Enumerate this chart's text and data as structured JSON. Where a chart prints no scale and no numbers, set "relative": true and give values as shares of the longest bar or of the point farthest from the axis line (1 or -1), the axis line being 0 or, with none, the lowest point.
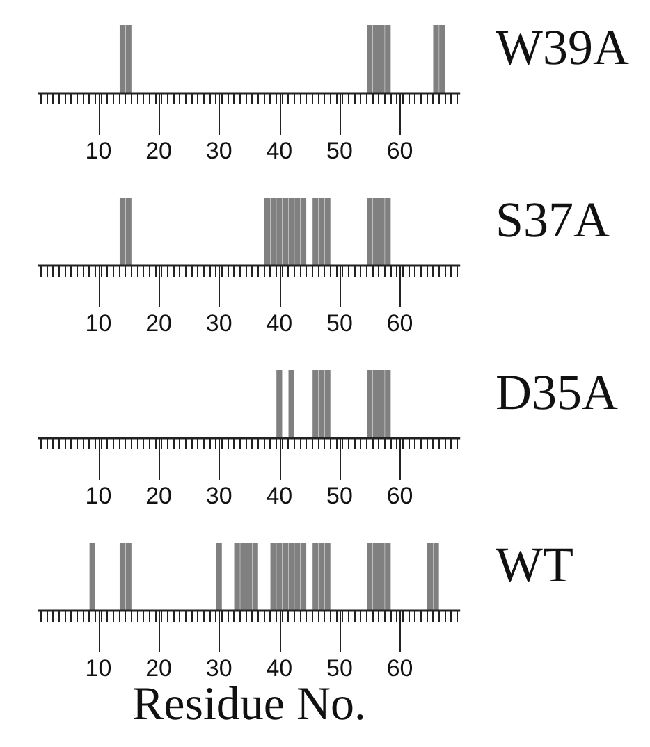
{
  "chart_data": [
    {
      "type": "bar",
      "relative": true,
      "xlim": [
        0,
        70
      ],
      "x": [
        14,
        15,
        55,
        56,
        57,
        58,
        66,
        67
      ],
      "series": [
        {
          "name": "W39A",
          "color": "#808080",
          "values": [
            1,
            1,
            1,
            1,
            1,
            1,
            1,
            1
          ]
        }
      ],
      "xticks": [
        {
          "value": 1,
          "label": null
        },
        {
          "value": 2,
          "label": null
        },
        {
          "value": 3,
          "label": null
        },
        {
          "value": 4,
          "label": null
        },
        {
          "value": 5,
          "label": null
        },
        {
          "value": 6,
          "label": null
        },
        {
          "value": 7,
          "label": null
        },
        {
          "value": 8,
          "label": null
        },
        {
          "value": 9,
          "label": null
        },
        10,
        {
          "value": 11,
          "label": null
        },
        {
          "value": 12,
          "label": null
        },
        {
          "value": 13,
          "label": null
        },
        {
          "value": 14,
          "label": null
        },
        {
          "value": 15,
          "label": null
        },
        {
          "value": 16,
          "label": null
        },
        {
          "value": 17,
          "label": null
        },
        {
          "value": 18,
          "label": null
        },
        {
          "value": 19,
          "label": null
        },
        20,
        {
          "value": 21,
          "label": null
        },
        {
          "value": 22,
          "label": null
        },
        {
          "value": 23,
          "label": null
        },
        {
          "value": 24,
          "label": null
        },
        {
          "value": 25,
          "label": null
        },
        {
          "value": 26,
          "label": null
        },
        {
          "value": 27,
          "label": null
        },
        {
          "value": 28,
          "label": null
        },
        {
          "value": 29,
          "label": null
        },
        30,
        {
          "value": 31,
          "label": null
        },
        {
          "value": 32,
          "label": null
        },
        {
          "value": 33,
          "label": null
        },
        {
          "value": 34,
          "label": null
        },
        {
          "value": 35,
          "label": null
        },
        {
          "value": 36,
          "label": null
        },
        {
          "value": 37,
          "label": null
        },
        {
          "value": 38,
          "label": null
        },
        {
          "value": 39,
          "label": null
        },
        40,
        {
          "value": 41,
          "label": null
        },
        {
          "value": 42,
          "label": null
        },
        {
          "value": 43,
          "label": null
        },
        {
          "value": 44,
          "label": null
        },
        {
          "value": 45,
          "label": null
        },
        {
          "value": 46,
          "label": null
        },
        {
          "value": 47,
          "label": null
        },
        {
          "value": 48,
          "label": null
        },
        {
          "value": 49,
          "label": null
        },
        50,
        {
          "value": 51,
          "label": null
        },
        {
          "value": 52,
          "label": null
        },
        {
          "value": 53,
          "label": null
        },
        {
          "value": 54,
          "label": null
        },
        {
          "value": 55,
          "label": null
        },
        {
          "value": 56,
          "label": null
        },
        {
          "value": 57,
          "label": null
        },
        {
          "value": 58,
          "label": null
        },
        {
          "value": 59,
          "label": null
        },
        60,
        {
          "value": 61,
          "label": null
        },
        {
          "value": 62,
          "label": null
        },
        {
          "value": 63,
          "label": null
        },
        {
          "value": 64,
          "label": null
        },
        {
          "value": 65,
          "label": null
        },
        {
          "value": 66,
          "label": null
        },
        {
          "value": 67,
          "label": null
        },
        {
          "value": 68,
          "label": null
        },
        {
          "value": 69,
          "label": null
        }
      ]
    },
    {
      "type": "bar",
      "relative": true,
      "xlim": [
        0,
        70
      ],
      "x": [
        14,
        15,
        38,
        39,
        40,
        41,
        42,
        43,
        44,
        46,
        47,
        48,
        55,
        56,
        57,
        58
      ],
      "series": [
        {
          "name": "S37A",
          "color": "#808080",
          "values": [
            1,
            1,
            1,
            1,
            1,
            1,
            1,
            1,
            1,
            1,
            1,
            1,
            1,
            1,
            1,
            1
          ]
        }
      ],
      "xticks": [
        {
          "value": 1,
          "label": null
        },
        {
          "value": 2,
          "label": null
        },
        {
          "value": 3,
          "label": null
        },
        {
          "value": 4,
          "label": null
        },
        {
          "value": 5,
          "label": null
        },
        {
          "value": 6,
          "label": null
        },
        {
          "value": 7,
          "label": null
        },
        {
          "value": 8,
          "label": null
        },
        {
          "value": 9,
          "label": null
        },
        10,
        {
          "value": 11,
          "label": null
        },
        {
          "value": 12,
          "label": null
        },
        {
          "value": 13,
          "label": null
        },
        {
          "value": 14,
          "label": null
        },
        {
          "value": 15,
          "label": null
        },
        {
          "value": 16,
          "label": null
        },
        {
          "value": 17,
          "label": null
        },
        {
          "value": 18,
          "label": null
        },
        {
          "value": 19,
          "label": null
        },
        20,
        {
          "value": 21,
          "label": null
        },
        {
          "value": 22,
          "label": null
        },
        {
          "value": 23,
          "label": null
        },
        {
          "value": 24,
          "label": null
        },
        {
          "value": 25,
          "label": null
        },
        {
          "value": 26,
          "label": null
        },
        {
          "value": 27,
          "label": null
        },
        {
          "value": 28,
          "label": null
        },
        {
          "value": 29,
          "label": null
        },
        30,
        {
          "value": 31,
          "label": null
        },
        {
          "value": 32,
          "label": null
        },
        {
          "value": 33,
          "label": null
        },
        {
          "value": 34,
          "label": null
        },
        {
          "value": 35,
          "label": null
        },
        {
          "value": 36,
          "label": null
        },
        {
          "value": 37,
          "label": null
        },
        {
          "value": 38,
          "label": null
        },
        {
          "value": 39,
          "label": null
        },
        40,
        {
          "value": 41,
          "label": null
        },
        {
          "value": 42,
          "label": null
        },
        {
          "value": 43,
          "label": null
        },
        {
          "value": 44,
          "label": null
        },
        {
          "value": 45,
          "label": null
        },
        {
          "value": 46,
          "label": null
        },
        {
          "value": 47,
          "label": null
        },
        {
          "value": 48,
          "label": null
        },
        {
          "value": 49,
          "label": null
        },
        50,
        {
          "value": 51,
          "label": null
        },
        {
          "value": 52,
          "label": null
        },
        {
          "value": 53,
          "label": null
        },
        {
          "value": 54,
          "label": null
        },
        {
          "value": 55,
          "label": null
        },
        {
          "value": 56,
          "label": null
        },
        {
          "value": 57,
          "label": null
        },
        {
          "value": 58,
          "label": null
        },
        {
          "value": 59,
          "label": null
        },
        60,
        {
          "value": 61,
          "label": null
        },
        {
          "value": 62,
          "label": null
        },
        {
          "value": 63,
          "label": null
        },
        {
          "value": 64,
          "label": null
        },
        {
          "value": 65,
          "label": null
        },
        {
          "value": 66,
          "label": null
        },
        {
          "value": 67,
          "label": null
        },
        {
          "value": 68,
          "label": null
        },
        {
          "value": 69,
          "label": null
        }
      ]
    },
    {
      "type": "bar",
      "relative": true,
      "xlim": [
        0,
        70
      ],
      "x": [
        40,
        42,
        46,
        47,
        48,
        55,
        56,
        57,
        58
      ],
      "series": [
        {
          "name": "D35A",
          "color": "#808080",
          "values": [
            1,
            1,
            1,
            1,
            1,
            1,
            1,
            1,
            1
          ]
        }
      ],
      "xticks": [
        {
          "value": 1,
          "label": null
        },
        {
          "value": 2,
          "label": null
        },
        {
          "value": 3,
          "label": null
        },
        {
          "value": 4,
          "label": null
        },
        {
          "value": 5,
          "label": null
        },
        {
          "value": 6,
          "label": null
        },
        {
          "value": 7,
          "label": null
        },
        {
          "value": 8,
          "label": null
        },
        {
          "value": 9,
          "label": null
        },
        10,
        {
          "value": 11,
          "label": null
        },
        {
          "value": 12,
          "label": null
        },
        {
          "value": 13,
          "label": null
        },
        {
          "value": 14,
          "label": null
        },
        {
          "value": 15,
          "label": null
        },
        {
          "value": 16,
          "label": null
        },
        {
          "value": 17,
          "label": null
        },
        {
          "value": 18,
          "label": null
        },
        {
          "value": 19,
          "label": null
        },
        20,
        {
          "value": 21,
          "label": null
        },
        {
          "value": 22,
          "label": null
        },
        {
          "value": 23,
          "label": null
        },
        {
          "value": 24,
          "label": null
        },
        {
          "value": 25,
          "label": null
        },
        {
          "value": 26,
          "label": null
        },
        {
          "value": 27,
          "label": null
        },
        {
          "value": 28,
          "label": null
        },
        {
          "value": 29,
          "label": null
        },
        30,
        {
          "value": 31,
          "label": null
        },
        {
          "value": 32,
          "label": null
        },
        {
          "value": 33,
          "label": null
        },
        {
          "value": 34,
          "label": null
        },
        {
          "value": 35,
          "label": null
        },
        {
          "value": 36,
          "label": null
        },
        {
          "value": 37,
          "label": null
        },
        {
          "value": 38,
          "label": null
        },
        {
          "value": 39,
          "label": null
        },
        40,
        {
          "value": 41,
          "label": null
        },
        {
          "value": 42,
          "label": null
        },
        {
          "value": 43,
          "label": null
        },
        {
          "value": 44,
          "label": null
        },
        {
          "value": 45,
          "label": null
        },
        {
          "value": 46,
          "label": null
        },
        {
          "value": 47,
          "label": null
        },
        {
          "value": 48,
          "label": null
        },
        {
          "value": 49,
          "label": null
        },
        50,
        {
          "value": 51,
          "label": null
        },
        {
          "value": 52,
          "label": null
        },
        {
          "value": 53,
          "label": null
        },
        {
          "value": 54,
          "label": null
        },
        {
          "value": 55,
          "label": null
        },
        {
          "value": 56,
          "label": null
        },
        {
          "value": 57,
          "label": null
        },
        {
          "value": 58,
          "label": null
        },
        {
          "value": 59,
          "label": null
        },
        60,
        {
          "value": 61,
          "label": null
        },
        {
          "value": 62,
          "label": null
        },
        {
          "value": 63,
          "label": null
        },
        {
          "value": 64,
          "label": null
        },
        {
          "value": 65,
          "label": null
        },
        {
          "value": 66,
          "label": null
        },
        {
          "value": 67,
          "label": null
        },
        {
          "value": 68,
          "label": null
        },
        {
          "value": 69,
          "label": null
        }
      ]
    },
    {
      "type": "bar",
      "xlabel": "Residue No.",
      "relative": true,
      "xlim": [
        0,
        70
      ],
      "x": [
        9,
        14,
        15,
        30,
        33,
        34,
        35,
        36,
        39,
        40,
        41,
        42,
        43,
        44,
        46,
        47,
        48,
        55,
        56,
        57,
        58,
        65,
        66
      ],
      "series": [
        {
          "name": "WT",
          "color": "#808080",
          "values": [
            1,
            1,
            1,
            1,
            1,
            1,
            1,
            1,
            1,
            1,
            1,
            1,
            1,
            1,
            1,
            1,
            1,
            1,
            1,
            1,
            1,
            1,
            1
          ]
        }
      ],
      "xticks": [
        {
          "value": 1,
          "label": null
        },
        {
          "value": 2,
          "label": null
        },
        {
          "value": 3,
          "label": null
        },
        {
          "value": 4,
          "label": null
        },
        {
          "value": 5,
          "label": null
        },
        {
          "value": 6,
          "label": null
        },
        {
          "value": 7,
          "label": null
        },
        {
          "value": 8,
          "label": null
        },
        {
          "value": 9,
          "label": null
        },
        10,
        {
          "value": 11,
          "label": null
        },
        {
          "value": 12,
          "label": null
        },
        {
          "value": 13,
          "label": null
        },
        {
          "value": 14,
          "label": null
        },
        {
          "value": 15,
          "label": null
        },
        {
          "value": 16,
          "label": null
        },
        {
          "value": 17,
          "label": null
        },
        {
          "value": 18,
          "label": null
        },
        {
          "value": 19,
          "label": null
        },
        20,
        {
          "value": 21,
          "label": null
        },
        {
          "value": 22,
          "label": null
        },
        {
          "value": 23,
          "label": null
        },
        {
          "value": 24,
          "label": null
        },
        {
          "value": 25,
          "label": null
        },
        {
          "value": 26,
          "label": null
        },
        {
          "value": 27,
          "label": null
        },
        {
          "value": 28,
          "label": null
        },
        {
          "value": 29,
          "label": null
        },
        30,
        {
          "value": 31,
          "label": null
        },
        {
          "value": 32,
          "label": null
        },
        {
          "value": 33,
          "label": null
        },
        {
          "value": 34,
          "label": null
        },
        {
          "value": 35,
          "label": null
        },
        {
          "value": 36,
          "label": null
        },
        {
          "value": 37,
          "label": null
        },
        {
          "value": 38,
          "label": null
        },
        {
          "value": 39,
          "label": null
        },
        40,
        {
          "value": 41,
          "label": null
        },
        {
          "value": 42,
          "label": null
        },
        {
          "value": 43,
          "label": null
        },
        {
          "value": 44,
          "label": null
        },
        {
          "value": 45,
          "label": null
        },
        {
          "value": 46,
          "label": null
        },
        {
          "value": 47,
          "label": null
        },
        {
          "value": 48,
          "label": null
        },
        {
          "value": 49,
          "label": null
        },
        50,
        {
          "value": 51,
          "label": null
        },
        {
          "value": 52,
          "label": null
        },
        {
          "value": 53,
          "label": null
        },
        {
          "value": 54,
          "label": null
        },
        {
          "value": 55,
          "label": null
        },
        {
          "value": 56,
          "label": null
        },
        {
          "value": 57,
          "label": null
        },
        {
          "value": 58,
          "label": null
        },
        {
          "value": 59,
          "label": null
        },
        60,
        {
          "value": 61,
          "label": null
        },
        {
          "value": 62,
          "label": null
        },
        {
          "value": 63,
          "label": null
        },
        {
          "value": 64,
          "label": null
        },
        {
          "value": 65,
          "label": null
        },
        {
          "value": 66,
          "label": null
        },
        {
          "value": 67,
          "label": null
        },
        {
          "value": 68,
          "label": null
        },
        {
          "value": 69,
          "label": null
        }
      ]
    }
  ]
}
